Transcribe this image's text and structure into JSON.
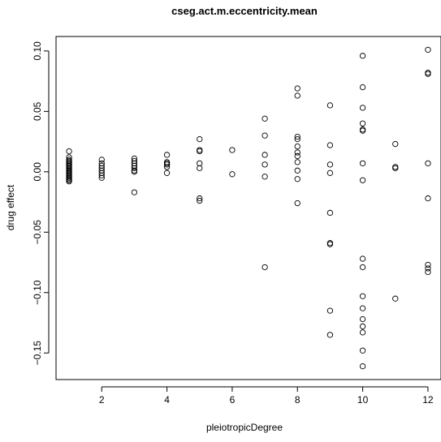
{
  "chart_data": {
    "type": "scatter",
    "title": "cseg.act.m.eccentricity.mean",
    "xlabel": "pleiotropicDegree",
    "ylabel": "drug effect",
    "xlim": [
      0.6,
      12.4
    ],
    "ylim": [
      -0.172,
      0.112
    ],
    "xticks": [
      2,
      4,
      6,
      8,
      10,
      12
    ],
    "xtick_labels": [
      "2",
      "4",
      "6",
      "8",
      "10",
      "12"
    ],
    "yticks": [
      -0.15,
      -0.1,
      -0.05,
      0.0,
      0.05,
      0.1
    ],
    "ytick_labels": [
      "−0.15",
      "−0.10",
      "−0.05",
      "0.00",
      "0.05",
      "0.10"
    ],
    "grid": false,
    "marker": "open-circle",
    "points": [
      [
        1,
        0.017
      ],
      [
        1,
        0.012
      ],
      [
        1,
        0.01
      ],
      [
        1,
        0.008
      ],
      [
        1,
        0.007
      ],
      [
        1,
        0.006
      ],
      [
        1,
        0.005
      ],
      [
        1,
        0.004
      ],
      [
        1,
        0.003
      ],
      [
        1,
        0.002
      ],
      [
        1,
        0.001
      ],
      [
        1,
        0.0
      ],
      [
        1,
        -0.001
      ],
      [
        1,
        -0.002
      ],
      [
        1,
        -0.003
      ],
      [
        1,
        -0.004
      ],
      [
        1,
        -0.005
      ],
      [
        1,
        -0.006
      ],
      [
        1,
        -0.007
      ],
      [
        1,
        0.009
      ],
      [
        1,
        -0.008
      ],
      [
        2,
        0.01
      ],
      [
        2,
        0.007
      ],
      [
        2,
        0.005
      ],
      [
        2,
        0.003
      ],
      [
        2,
        0.001
      ],
      [
        2,
        -0.001
      ],
      [
        2,
        -0.003
      ],
      [
        2,
        -0.005
      ],
      [
        3,
        0.011
      ],
      [
        3,
        0.009
      ],
      [
        3,
        0.007
      ],
      [
        3,
        0.005
      ],
      [
        3,
        0.003
      ],
      [
        3,
        0.001
      ],
      [
        3,
        0.0
      ],
      [
        3,
        -0.017
      ],
      [
        4,
        0.014
      ],
      [
        4,
        0.008
      ],
      [
        4,
        0.007
      ],
      [
        4,
        0.006
      ],
      [
        4,
        0.004
      ],
      [
        4,
        -0.001
      ],
      [
        5,
        0.027
      ],
      [
        5,
        0.018
      ],
      [
        5,
        0.017
      ],
      [
        5,
        0.007
      ],
      [
        5,
        0.003
      ],
      [
        5,
        -0.022
      ],
      [
        5,
        -0.024
      ],
      [
        6,
        0.018
      ],
      [
        6,
        -0.002
      ],
      [
        7,
        0.044
      ],
      [
        7,
        0.03
      ],
      [
        7,
        0.014
      ],
      [
        7,
        0.006
      ],
      [
        7,
        -0.004
      ],
      [
        7,
        -0.079
      ],
      [
        8,
        0.069
      ],
      [
        8,
        0.063
      ],
      [
        8,
        0.029
      ],
      [
        8,
        0.027
      ],
      [
        8,
        0.021
      ],
      [
        8,
        0.016
      ],
      [
        8,
        0.013
      ],
      [
        8,
        0.008
      ],
      [
        8,
        0.001
      ],
      [
        8,
        -0.006
      ],
      [
        8,
        -0.026
      ],
      [
        9,
        0.055
      ],
      [
        9,
        0.022
      ],
      [
        9,
        0.006
      ],
      [
        9,
        -0.001
      ],
      [
        9,
        -0.034
      ],
      [
        9,
        -0.059
      ],
      [
        9,
        -0.06
      ],
      [
        9,
        -0.115
      ],
      [
        9,
        -0.135
      ],
      [
        10,
        0.096
      ],
      [
        10,
        0.07
      ],
      [
        10,
        0.053
      ],
      [
        10,
        0.04
      ],
      [
        10,
        0.035
      ],
      [
        10,
        0.034
      ],
      [
        10,
        0.007
      ],
      [
        10,
        -0.007
      ],
      [
        10,
        -0.072
      ],
      [
        10,
        -0.079
      ],
      [
        10,
        -0.103
      ],
      [
        10,
        -0.113
      ],
      [
        10,
        -0.122
      ],
      [
        10,
        -0.128
      ],
      [
        10,
        -0.133
      ],
      [
        10,
        -0.148
      ],
      [
        10,
        -0.161
      ],
      [
        11,
        0.023
      ],
      [
        11,
        0.004
      ],
      [
        11,
        0.003
      ],
      [
        11,
        -0.105
      ],
      [
        12,
        0.101
      ],
      [
        12,
        0.082
      ],
      [
        12,
        0.081
      ],
      [
        12,
        0.007
      ],
      [
        12,
        -0.022
      ],
      [
        12,
        -0.077
      ],
      [
        12,
        -0.08
      ],
      [
        12,
        -0.083
      ]
    ]
  }
}
